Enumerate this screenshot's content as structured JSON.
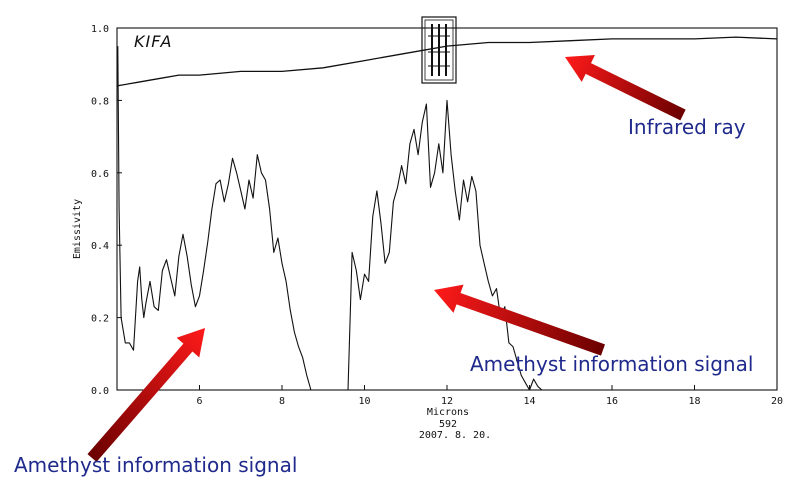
{
  "brand_label": "KIFA",
  "caption": {
    "number": "592",
    "date": "2007. 8. 20."
  },
  "annotations": {
    "infrared": "Infrared ray",
    "amethyst_right": "Amethyst information signal",
    "amethyst_left": "Amethyst information signal"
  },
  "colors": {
    "arrow_head": "#ff1a1a",
    "arrow_tail": "#6b0000",
    "annotation_text": "#1f2a8c",
    "trace": "#111111"
  },
  "chart_data": {
    "type": "line",
    "xlabel": "Microns",
    "ylabel": "Emissivity",
    "xlim": [
      4.0,
      20.0
    ],
    "ylim": [
      0.0,
      1.0
    ],
    "x_ticks": [
      6,
      8,
      10,
      12,
      14,
      16,
      18,
      20
    ],
    "y_ticks": [
      0.0,
      0.2,
      0.4,
      0.6,
      0.8,
      1.0
    ],
    "y_tick_labels": [
      "0.0",
      "0.2",
      "0.4",
      "0.6",
      "0.8",
      "1.0"
    ],
    "grid": false,
    "series": [
      {
        "x": [
          4.0,
          4.5,
          5.0,
          5.5,
          6.0,
          7.0,
          8.0,
          9.0,
          10.0,
          11.0,
          12.0,
          13.0,
          14.0,
          15.0,
          16.0,
          17.0,
          18.0,
          19.0,
          20.0
        ],
        "y": [
          0.84,
          0.85,
          0.86,
          0.87,
          0.87,
          0.88,
          0.88,
          0.89,
          0.91,
          0.93,
          0.95,
          0.96,
          0.96,
          0.965,
          0.97,
          0.97,
          0.97,
          0.975,
          0.97
        ]
      },
      {
        "x": [
          4.02,
          4.05,
          4.1,
          4.2,
          4.3,
          4.4,
          4.5,
          4.55,
          4.6,
          4.65,
          4.7,
          4.8,
          4.9,
          5.0,
          5.1,
          5.2,
          5.3,
          5.4,
          5.5,
          5.6,
          5.7,
          5.8,
          5.9,
          6.0,
          6.1,
          6.2,
          6.3,
          6.4,
          6.5,
          6.6,
          6.7,
          6.8,
          6.9,
          7.0,
          7.1,
          7.2,
          7.3,
          7.4,
          7.5,
          7.6,
          7.7,
          7.8,
          7.9,
          8.0,
          8.1,
          8.2,
          8.3,
          8.4,
          8.5,
          8.6,
          8.7
        ],
        "y": [
          0.95,
          0.5,
          0.2,
          0.13,
          0.13,
          0.11,
          0.3,
          0.34,
          0.25,
          0.2,
          0.24,
          0.3,
          0.23,
          0.22,
          0.33,
          0.36,
          0.31,
          0.26,
          0.37,
          0.43,
          0.37,
          0.29,
          0.23,
          0.26,
          0.33,
          0.41,
          0.5,
          0.57,
          0.58,
          0.52,
          0.57,
          0.64,
          0.6,
          0.55,
          0.5,
          0.58,
          0.53,
          0.65,
          0.6,
          0.58,
          0.5,
          0.38,
          0.42,
          0.35,
          0.3,
          0.22,
          0.16,
          0.12,
          0.09,
          0.04,
          0.0
        ]
      },
      {
        "x": [
          9.6,
          9.7,
          9.8,
          9.9,
          10.0,
          10.1,
          10.2,
          10.3,
          10.4,
          10.5,
          10.6,
          10.7,
          10.8,
          10.9,
          11.0,
          11.1,
          11.2,
          11.3,
          11.4,
          11.5,
          11.6,
          11.7,
          11.8,
          11.9,
          12.0,
          12.1,
          12.2,
          12.3,
          12.4,
          12.5,
          12.6,
          12.7,
          12.8,
          12.9,
          13.0,
          13.1,
          13.2,
          13.3,
          13.4,
          13.5,
          13.6,
          13.7,
          13.8,
          13.9,
          14.0,
          14.1,
          14.2,
          14.3,
          14.4
        ],
        "y": [
          0.0,
          0.38,
          0.33,
          0.25,
          0.32,
          0.3,
          0.48,
          0.55,
          0.46,
          0.35,
          0.38,
          0.52,
          0.56,
          0.62,
          0.57,
          0.68,
          0.72,
          0.65,
          0.74,
          0.79,
          0.56,
          0.6,
          0.68,
          0.6,
          0.8,
          0.65,
          0.55,
          0.47,
          0.58,
          0.52,
          0.59,
          0.55,
          0.4,
          0.35,
          0.3,
          0.26,
          0.28,
          0.2,
          0.23,
          0.13,
          0.12,
          0.08,
          0.04,
          0.02,
          0.0,
          0.03,
          0.01,
          0.0,
          0.0
        ]
      }
    ]
  }
}
